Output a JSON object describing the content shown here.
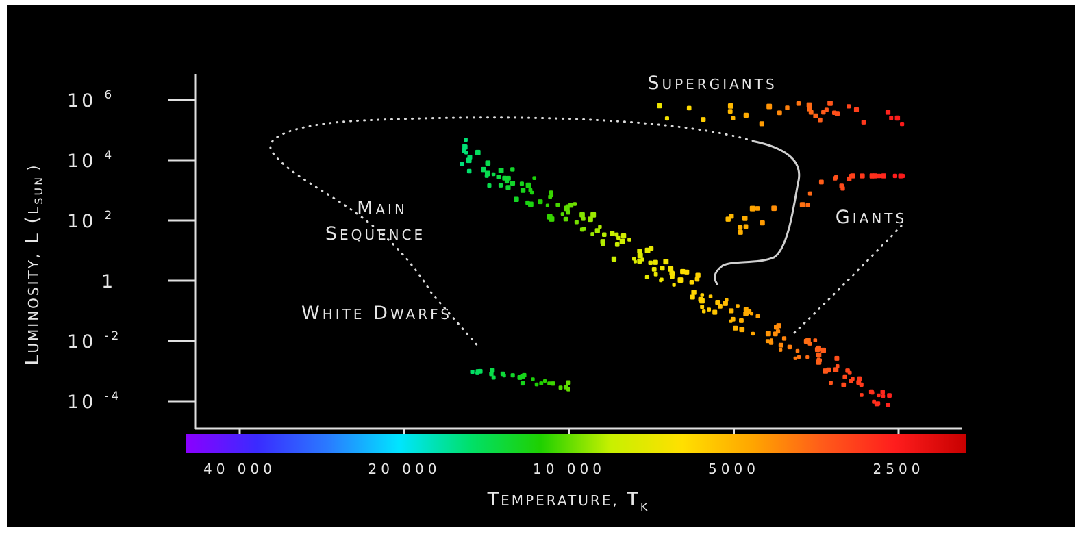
{
  "chart_data": {
    "type": "scatter",
    "xlabel": "Temperature, T",
    "xlabel_sub": "K",
    "ylabel": "Luminosity, L (L",
    "ylabel_sub": "sun",
    "ylabel_close": ")",
    "x_scale": "log-reversed",
    "y_scale": "log",
    "xlim": [
      50000,
      2000
    ],
    "ylim": [
      1e-06,
      10000000
    ],
    "x_ticks": [
      {
        "label": "40 000",
        "value": 40000
      },
      {
        "label": "20 000",
        "value": 20000
      },
      {
        "label": "10 000",
        "value": 10000
      },
      {
        "label": "5000",
        "value": 5000
      },
      {
        "label": "2500",
        "value": 2500
      }
    ],
    "y_ticks": [
      {
        "base": "10",
        "exp": "6",
        "value": 1000000
      },
      {
        "base": "10",
        "exp": "4",
        "value": 10000
      },
      {
        "base": "10",
        "exp": "2",
        "value": 100
      },
      {
        "base": "1",
        "exp": "",
        "value": 1
      },
      {
        "base": "10",
        "exp": "-2",
        "value": 0.01
      },
      {
        "base": "10",
        "exp": "-4",
        "value": 0.0001
      }
    ],
    "regions": [
      {
        "name": "Supergiants",
        "lines": [
          "Supergiants"
        ]
      },
      {
        "name": "Giants",
        "lines": [
          "Giants"
        ]
      },
      {
        "name": "Main Sequence",
        "lines": [
          "Main",
          "Sequence"
        ]
      },
      {
        "name": "White Dwarfs",
        "lines": [
          "White Dwarfs"
        ]
      }
    ],
    "groups": {
      "main_sequence": {
        "t_start": 16000,
        "l_start": 20000,
        "t_end": 2600,
        "l_end": 0.0001,
        "count": 180,
        "scatter_dex": 0.45
      },
      "supergiants": {
        "t_start": 7000,
        "t_end": 2450,
        "l_min": 150000,
        "l_max": 800000,
        "count": 30
      },
      "giants": {
        "t_start": 5200,
        "t_end": 2450,
        "l_min": 50,
        "l_max": 3000,
        "count": 30
      },
      "white_dwarfs": {
        "t_start": 15000,
        "t_end": 10000,
        "l_start": 0.001,
        "l_end": 0.0003,
        "count": 24
      }
    },
    "grid": false,
    "legend": "none",
    "colorbar": {
      "stops": [
        "#8a00ff",
        "#3a2bff",
        "#2a7bff",
        "#00e5ff",
        "#00e06a",
        "#1fd000",
        "#c8f000",
        "#ffe000",
        "#ffa500",
        "#ff5a1a",
        "#ff1d1d",
        "#c80000"
      ]
    },
    "background": "#000000",
    "axis_color": "#e0e0e0"
  }
}
